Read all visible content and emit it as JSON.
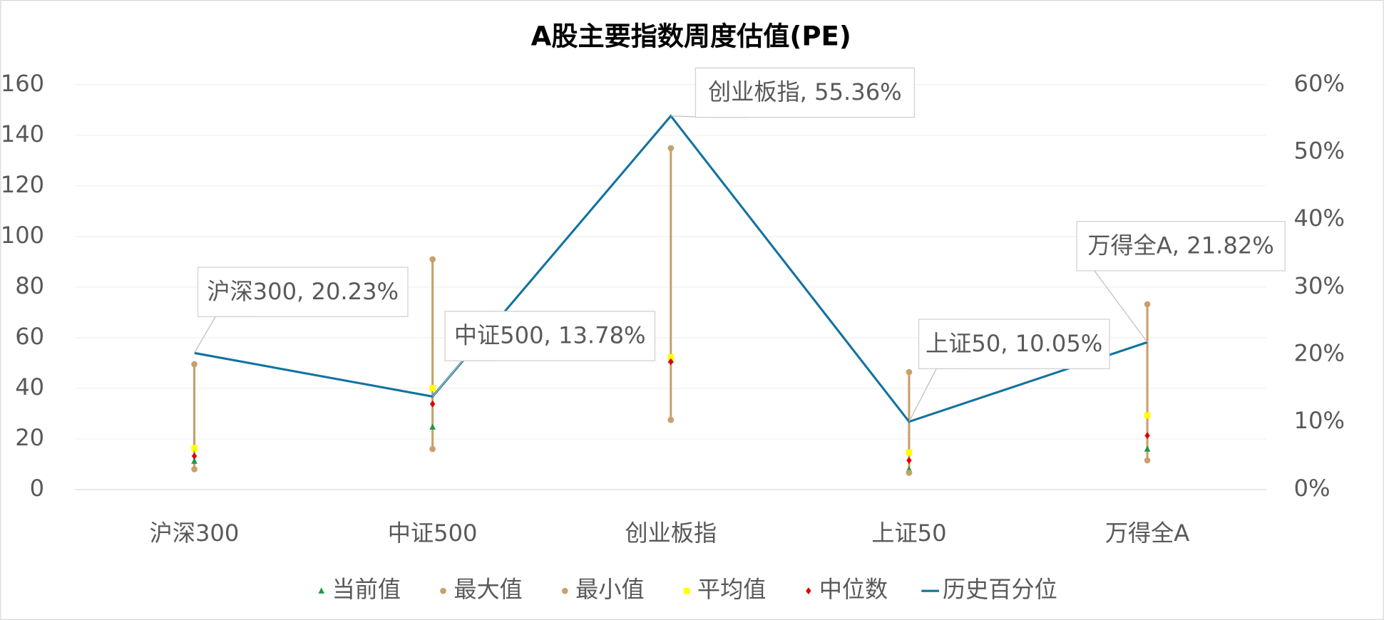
{
  "chart_data": {
    "type": "range",
    "title": "A股主要指数周度估值(PE)",
    "categories": [
      "沪深300",
      "中证500",
      "创业板指",
      "上证50",
      "万得全A"
    ],
    "series": [
      {
        "name": "当前值",
        "color": "#1e9a4b",
        "marker": "triangle",
        "values": [
          11.2,
          24.7,
          51.0,
          8.0,
          16.0
        ]
      },
      {
        "name": "最大值",
        "color": "#c8a06a",
        "marker": "circle",
        "values": [
          49.5,
          91.0,
          134.9,
          46.4,
          73.2
        ]
      },
      {
        "name": "最小值",
        "color": "#c8a06a",
        "marker": "circle",
        "values": [
          8.0,
          16.0,
          27.5,
          6.6,
          11.5
        ]
      },
      {
        "name": "平均值",
        "color": "#ffff00",
        "marker": "square",
        "values": [
          16.4,
          40.1,
          52.3,
          14.6,
          29.3
        ]
      },
      {
        "name": "中位数",
        "color": "#e00000",
        "marker": "diamond",
        "values": [
          13.2,
          33.8,
          50.5,
          11.5,
          21.3
        ]
      },
      {
        "name": "历史百分位",
        "color": "#1273a0",
        "marker": "line",
        "axis": "y2",
        "values": [
          20.23,
          13.78,
          55.36,
          10.05,
          21.82
        ],
        "value_labels": [
          "沪深300, 20.23%",
          "中证500, 13.78%",
          "创业板指, 55.36%",
          "上证50, 10.05%",
          "万得全A, 21.82%"
        ]
      }
    ],
    "ylim": [
      0,
      160
    ],
    "yticks": [
      0,
      20,
      40,
      60,
      80,
      100,
      120,
      140,
      160
    ],
    "y2lim": [
      0,
      60
    ],
    "y2ticks": [
      {
        "value": 0,
        "label": "0%"
      },
      {
        "value": 10,
        "label": "10%"
      },
      {
        "value": 20,
        "label": "20%"
      },
      {
        "value": 30,
        "label": "30%"
      },
      {
        "value": 40,
        "label": "40%"
      },
      {
        "value": 50,
        "label": "50%"
      },
      {
        "value": 60,
        "label": "60%"
      }
    ],
    "grid": true
  }
}
